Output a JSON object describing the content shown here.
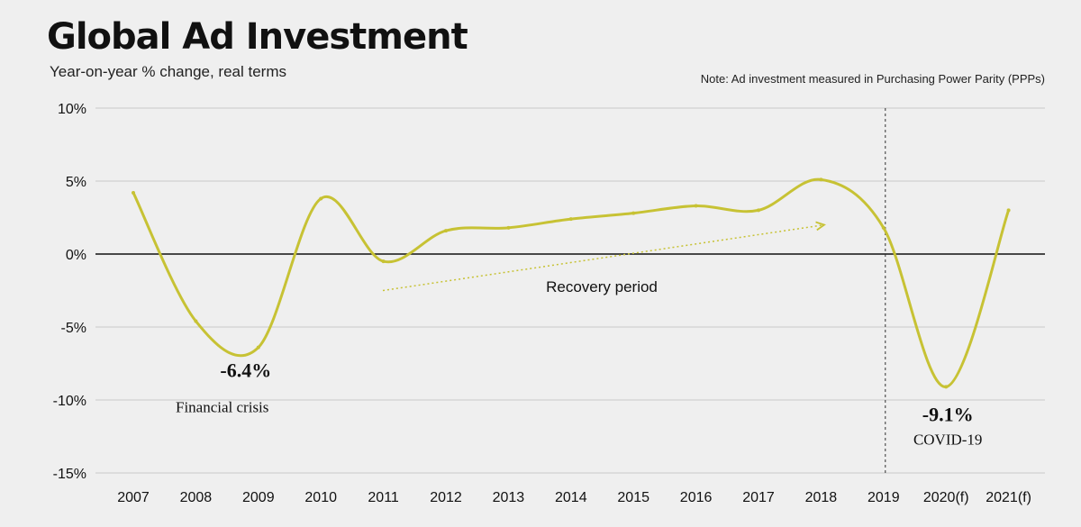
{
  "title": "Global Ad Investment",
  "subtitle": "Year-on-year % change, real terms",
  "note": "Note: Ad investment measured in Purchasing Power Parity (PPPs)",
  "colors": {
    "series": "#c7c234",
    "grid": "#c8c8c8",
    "zero": "#111111"
  },
  "chart_data": {
    "type": "line",
    "categories": [
      "2007",
      "2008",
      "2009",
      "2010",
      "2011",
      "2012",
      "2013",
      "2014",
      "2015",
      "2016",
      "2017",
      "2018",
      "2019",
      "2020(f)",
      "2021(f)"
    ],
    "series": [
      {
        "values": [
          4.2,
          -4.6,
          -6.4,
          3.8,
          -0.5,
          1.6,
          1.8,
          2.4,
          2.8,
          3.3,
          3.0,
          5.1,
          1.8,
          -9.1,
          3.0
        ]
      }
    ],
    "yticks": [
      "10%",
      "5%",
      "0%",
      "-5%",
      "-10%",
      "-15%"
    ],
    "ylim": [
      -15,
      10
    ],
    "grid": true,
    "annotations": {
      "financial_value": "-6.4%",
      "financial_label": "Financial crisis",
      "recovery_label": "Recovery period",
      "covid_value": "-9.1%",
      "covid_label": "COVID-19"
    }
  }
}
